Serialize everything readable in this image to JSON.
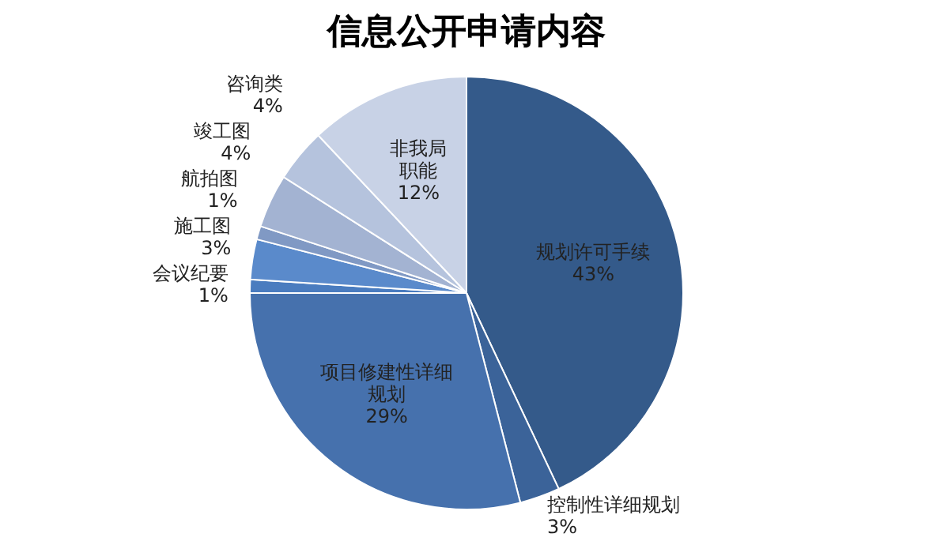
{
  "chart_data": {
    "type": "pie",
    "title": "信息公开申请内容",
    "categories": [
      "规划许可手续",
      "控制性详细规划",
      "项目修建性详细规划",
      "会议纪要",
      "施工图",
      "航拍图",
      "竣工图",
      "咨询类",
      "非我局职能"
    ],
    "values": [
      43,
      3,
      29,
      1,
      3,
      1,
      4,
      4,
      12
    ],
    "value_labels": [
      "43%",
      "3%",
      "29%",
      "1%",
      "3%",
      "1%",
      "4%",
      "4%",
      "12%"
    ],
    "colors": [
      "#345a8a",
      "#3b6399",
      "#4671ad",
      "#4a7cbf",
      "#5a8acb",
      "#8099c4",
      "#a3b3d2",
      "#b5c3dd",
      "#c8d2e6"
    ],
    "legend": false
  }
}
